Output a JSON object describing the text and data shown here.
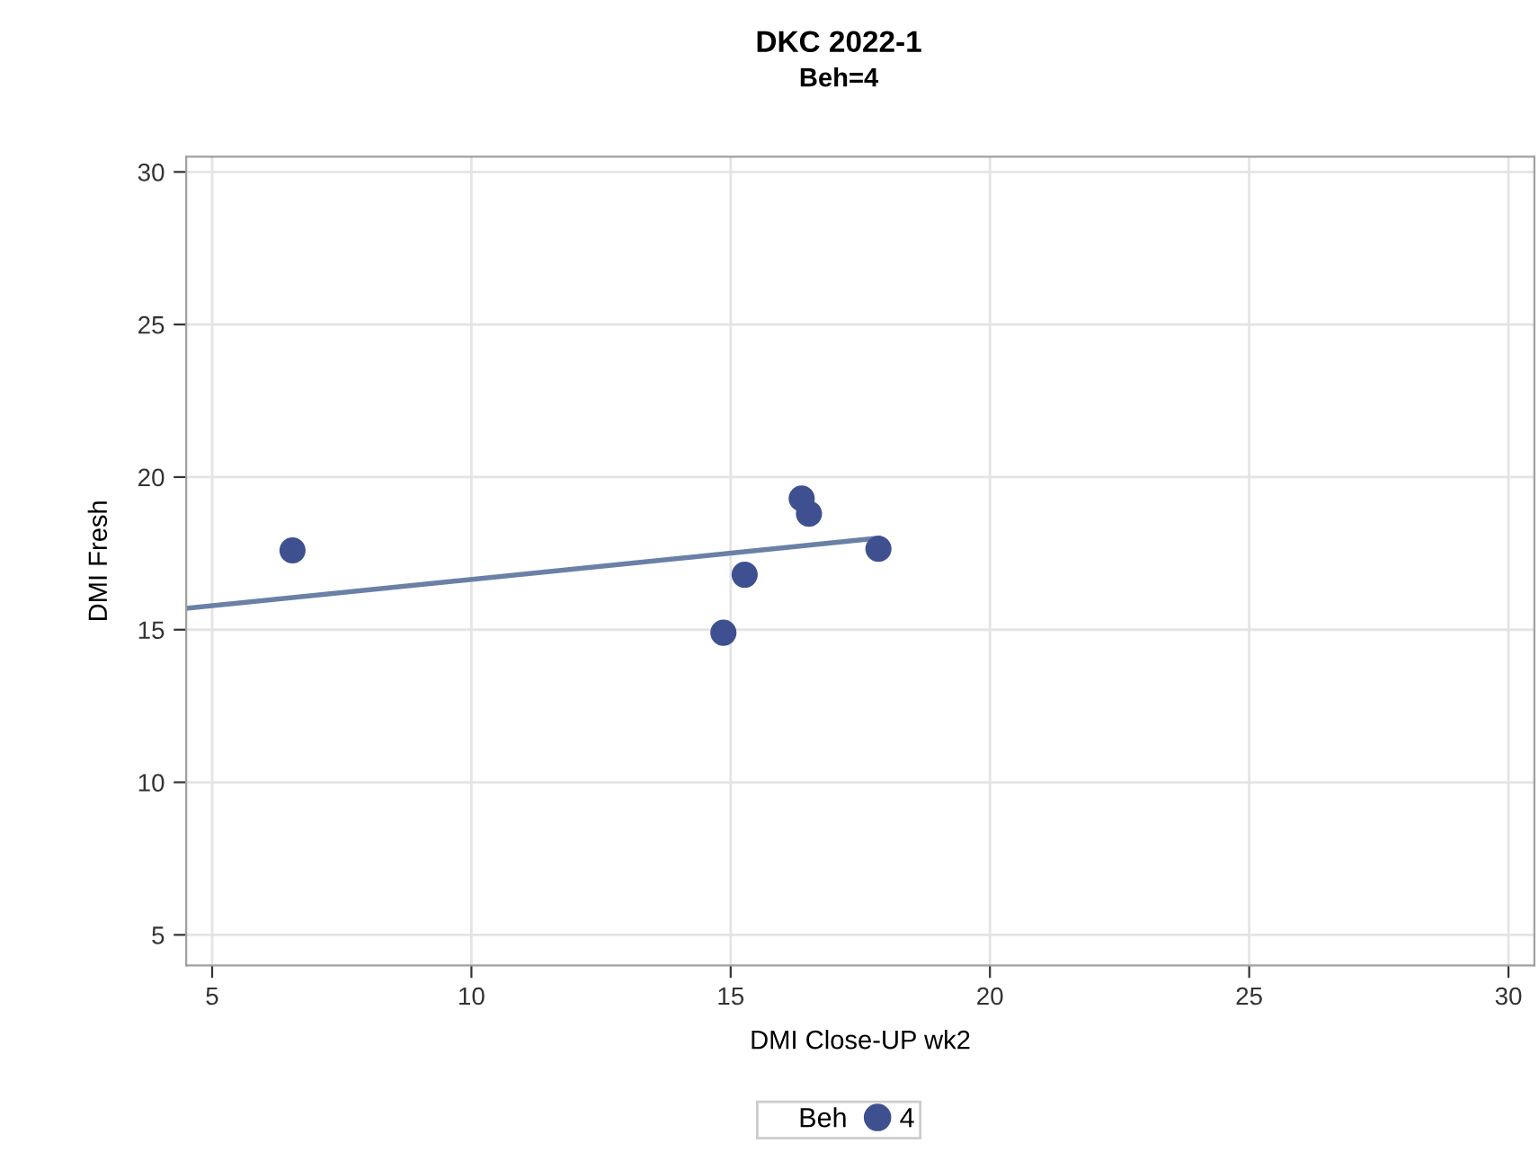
{
  "chart_data": {
    "type": "scatter",
    "title": "DKC 2022-1",
    "subtitle": "Beh=4",
    "xlabel": "DMI Close-UP wk2",
    "ylabel": "DMI Fresh",
    "legend_title": "Beh",
    "series": [
      {
        "name": "4",
        "marker": "circle",
        "color": "#3e5090",
        "x": [
          6.55,
          14.86,
          15.27,
          16.37,
          16.51,
          17.85
        ],
        "values": [
          17.6,
          14.9,
          16.8,
          19.3,
          18.8,
          17.65
        ]
      },
      {
        "type": "line",
        "marker": "none",
        "color": "#6a80a6",
        "x": [
          4.5,
          17.85
        ],
        "values": [
          15.7,
          18.0
        ]
      }
    ],
    "xlim": [
      4.5,
      30.5
    ],
    "ylim": [
      4,
      30.5
    ],
    "xticks": [
      5,
      10,
      15,
      20,
      25,
      30
    ],
    "yticks": [
      5,
      10,
      15,
      20,
      25,
      30
    ],
    "grid": true,
    "legend": "bottom"
  }
}
